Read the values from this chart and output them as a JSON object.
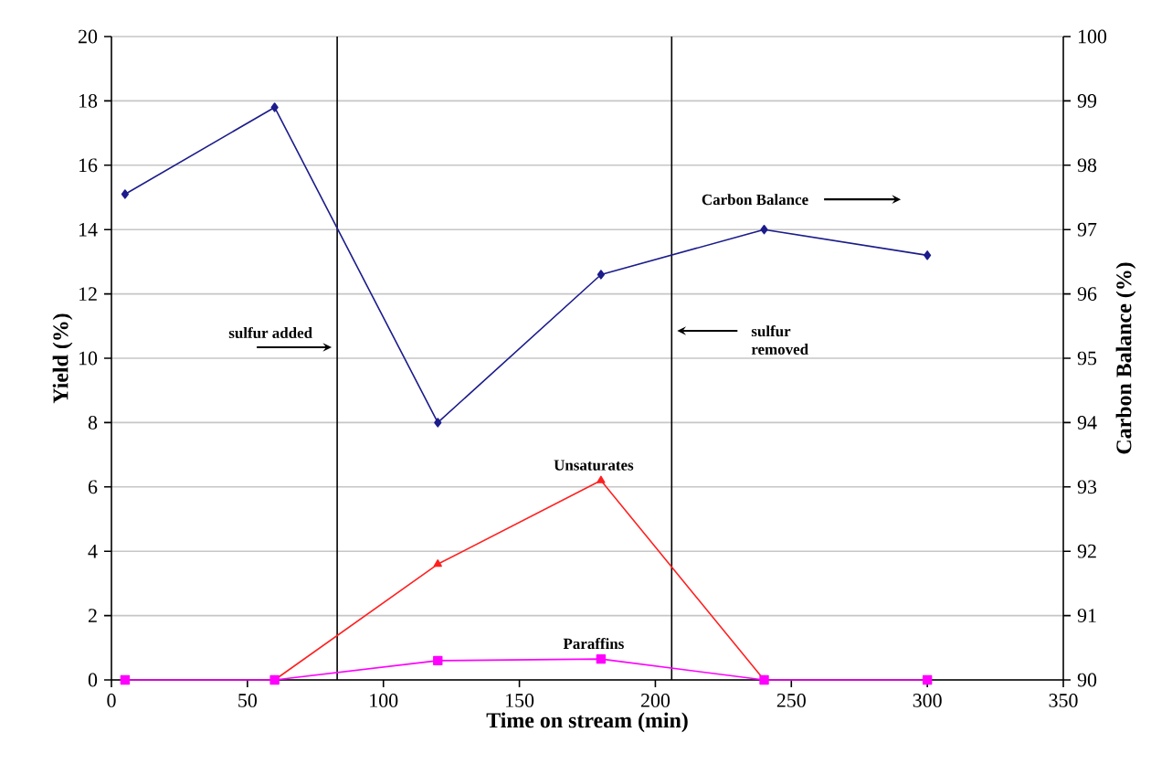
{
  "chart_data": {
    "type": "line",
    "xlabel": "Time on stream (min)",
    "ylabel": "Yield (%)",
    "y2label": "Carbon Balance (%)",
    "xlim": [
      0,
      350
    ],
    "xticks": [
      0,
      50,
      100,
      150,
      200,
      250,
      300,
      350
    ],
    "ylim": [
      0,
      20
    ],
    "yticks": [
      0,
      2,
      4,
      6,
      8,
      10,
      12,
      14,
      16,
      18,
      20
    ],
    "y2lim": [
      90,
      100
    ],
    "y2ticks": [
      90,
      91,
      92,
      93,
      94,
      95,
      96,
      97,
      98,
      99,
      100
    ],
    "grid": "y",
    "series": [
      {
        "name": "Carbon Balance",
        "color": "#1c1c8c",
        "axis": "y2",
        "marker": "diamond",
        "x": [
          5,
          60,
          120,
          180,
          240,
          300
        ],
        "values": [
          97.55,
          98.9,
          94.0,
          96.3,
          97.0,
          96.6
        ]
      },
      {
        "name": "Unsaturates",
        "color": "#ff2020",
        "marker": "triangle",
        "x": [
          60,
          120,
          180,
          240
        ],
        "values": [
          0,
          3.6,
          6.2,
          0
        ]
      },
      {
        "name": "Paraffins",
        "color": "#ff00ff",
        "marker": "square",
        "x": [
          5,
          60,
          120,
          180,
          240,
          300
        ],
        "values": [
          0,
          0,
          0.6,
          0.65,
          0,
          0
        ]
      }
    ],
    "ref_lines": [
      {
        "axis": "x",
        "value": 83,
        "label": "sulfur added",
        "color": "#000000"
      },
      {
        "axis": "x",
        "value": 206,
        "label": "sulfur removed",
        "color": "#000000"
      }
    ]
  }
}
